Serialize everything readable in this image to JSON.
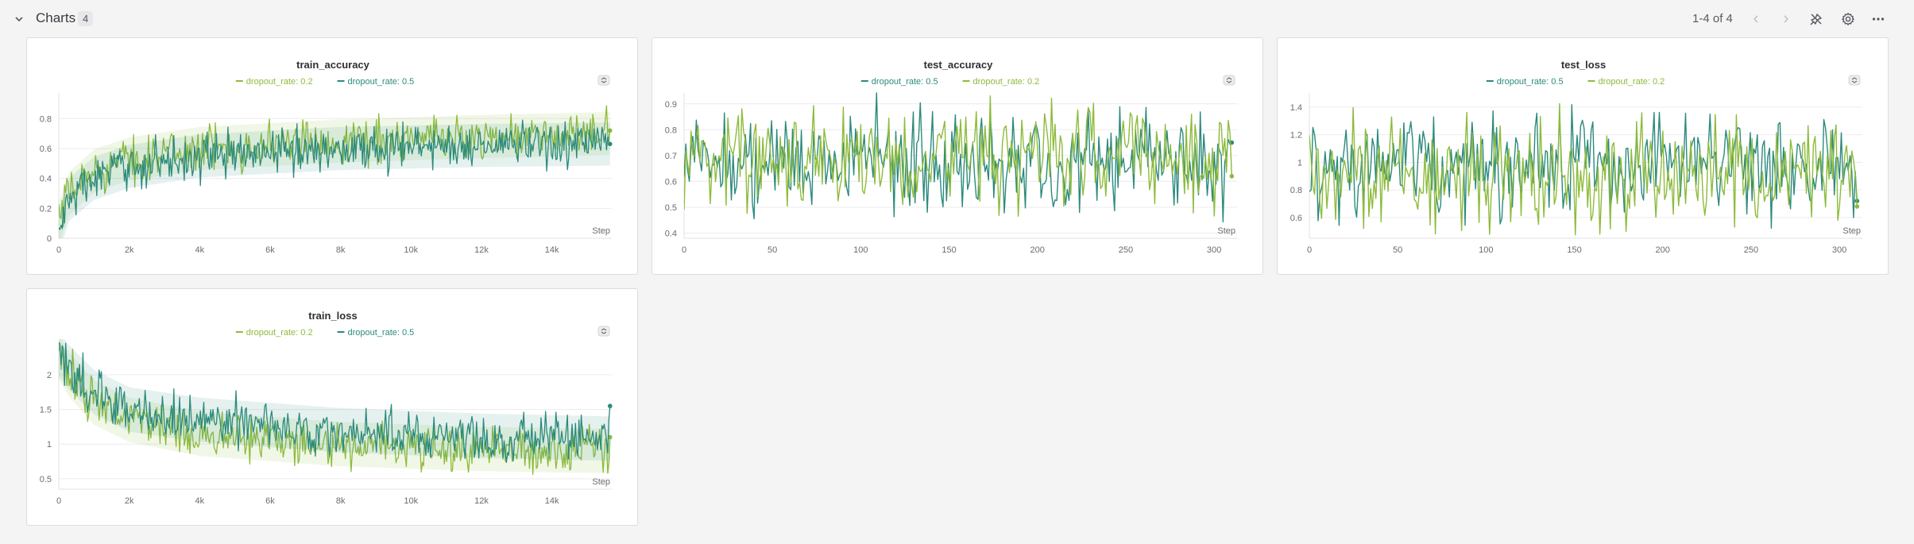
{
  "section": {
    "title": "Charts",
    "count": "4",
    "pager": "1-4 of 4"
  },
  "colors": {
    "dropout_0_2": "#8dbb3c",
    "dropout_0_5": "#2b8a7c",
    "grid": "#ececef",
    "axis_text": "#6b6b72"
  },
  "icons": {
    "collapse": "chevron-down-icon",
    "prev": "chevron-left-icon",
    "next": "chevron-right-icon",
    "pin": "pin-off-icon",
    "settings": "gear-icon",
    "more": "more-horizontal-icon"
  },
  "chart_data": [
    {
      "type": "line",
      "title": "train_accuracy",
      "xlabel": "Step",
      "xlim": [
        0,
        15700
      ],
      "ylim": [
        0,
        0.95
      ],
      "xticks": [
        0,
        2000,
        4000,
        6000,
        8000,
        10000,
        12000,
        14000
      ],
      "xtick_labels": [
        "0",
        "2k",
        "4k",
        "6k",
        "8k",
        "10k",
        "12k",
        "14k"
      ],
      "yticks": [
        0,
        0.2,
        0.4,
        0.6,
        0.8
      ],
      "ytick_labels": [
        "0",
        "0.2",
        "0.4",
        "0.6",
        "0.8"
      ],
      "legend": [
        "dropout_rate: 0.2",
        "dropout_rate: 0.5"
      ],
      "legend_placement": "top-center",
      "grid": true,
      "series": [
        {
          "name": "dropout_rate: 0.2",
          "color": "#8dbb3c",
          "trend": [
            [
              0,
              0.1
            ],
            [
              300,
              0.3
            ],
            [
              1000,
              0.45
            ],
            [
              2000,
              0.53
            ],
            [
              4000,
              0.6
            ],
            [
              8000,
              0.65
            ],
            [
              12000,
              0.68
            ],
            [
              15700,
              0.7
            ]
          ],
          "noise": 0.09,
          "end": 0.72
        },
        {
          "name": "dropout_rate: 0.5",
          "color": "#2b8a7c",
          "trend": [
            [
              0,
              0.05
            ],
            [
              300,
              0.26
            ],
            [
              1000,
              0.4
            ],
            [
              2000,
              0.48
            ],
            [
              4000,
              0.55
            ],
            [
              8000,
              0.6
            ],
            [
              12000,
              0.62
            ],
            [
              15700,
              0.63
            ]
          ],
          "noise": 0.09,
          "end": 0.63
        }
      ]
    },
    {
      "type": "line",
      "title": "test_accuracy",
      "xlabel": "Step",
      "xlim": [
        0,
        313
      ],
      "ylim": [
        0.38,
        0.93
      ],
      "xticks": [
        0,
        50,
        100,
        150,
        200,
        250,
        300
      ],
      "xtick_labels": [
        "0",
        "50",
        "100",
        "150",
        "200",
        "250",
        "300"
      ],
      "yticks": [
        0.4,
        0.5,
        0.6,
        0.7,
        0.8,
        0.9
      ],
      "ytick_labels": [
        "0.4",
        "0.5",
        "0.6",
        "0.7",
        "0.8",
        "0.9"
      ],
      "legend": [
        "dropout_rate: 0.5",
        "dropout_rate: 0.2"
      ],
      "legend_placement": "top-center",
      "grid": true,
      "series": [
        {
          "name": "dropout_rate: 0.5",
          "color": "#2b8a7c",
          "trend": [
            [
              0,
              0.68
            ],
            [
              313,
              0.68
            ]
          ],
          "noise": 0.09,
          "end": 0.75
        },
        {
          "name": "dropout_rate: 0.2",
          "color": "#8dbb3c",
          "trend": [
            [
              0,
              0.7
            ],
            [
              313,
              0.7
            ]
          ],
          "noise": 0.09,
          "end": 0.62
        }
      ]
    },
    {
      "type": "line",
      "title": "test_loss",
      "xlabel": "Step",
      "xlim": [
        0,
        313
      ],
      "ylim": [
        0.45,
        1.48
      ],
      "xticks": [
        0,
        50,
        100,
        150,
        200,
        250,
        300
      ],
      "xtick_labels": [
        "0",
        "50",
        "100",
        "150",
        "200",
        "250",
        "300"
      ],
      "yticks": [
        0.6,
        0.8,
        1,
        1.2,
        1.4
      ],
      "ytick_labels": [
        "0.6",
        "0.8",
        "1",
        "1.2",
        "1.4"
      ],
      "legend": [
        "dropout_rate: 0.5",
        "dropout_rate: 0.2"
      ],
      "legend_placement": "top-center",
      "grid": true,
      "series": [
        {
          "name": "dropout_rate: 0.5",
          "color": "#2b8a7c",
          "trend": [
            [
              0,
              0.98
            ],
            [
              313,
              0.98
            ]
          ],
          "noise": 0.17,
          "end": 0.72
        },
        {
          "name": "dropout_rate: 0.2",
          "color": "#8dbb3c",
          "trend": [
            [
              0,
              0.92
            ],
            [
              313,
              0.92
            ]
          ],
          "noise": 0.17,
          "end": 0.68
        }
      ]
    },
    {
      "type": "line",
      "title": "train_loss",
      "xlabel": "Step",
      "xlim": [
        0,
        15700
      ],
      "ylim": [
        0.35,
        2.4
      ],
      "xticks": [
        0,
        2000,
        4000,
        6000,
        8000,
        10000,
        12000,
        14000
      ],
      "xtick_labels": [
        "0",
        "2k",
        "4k",
        "6k",
        "8k",
        "10k",
        "12k",
        "14k"
      ],
      "yticks": [
        0.5,
        1,
        1.5,
        2
      ],
      "ytick_labels": [
        "0.5",
        "1",
        "1.5",
        "2"
      ],
      "legend": [
        "dropout_rate: 0.2",
        "dropout_rate: 0.5"
      ],
      "legend_placement": "top-center",
      "grid": true,
      "series": [
        {
          "name": "dropout_rate: 0.2",
          "color": "#8dbb3c",
          "trend": [
            [
              0,
              2.25
            ],
            [
              300,
              2.0
            ],
            [
              1000,
              1.6
            ],
            [
              2000,
              1.35
            ],
            [
              4000,
              1.15
            ],
            [
              8000,
              1.0
            ],
            [
              12000,
              0.93
            ],
            [
              15700,
              0.9
            ]
          ],
          "noise": 0.2,
          "end": 1.1
        },
        {
          "name": "dropout_rate: 0.5",
          "color": "#2b8a7c",
          "trend": [
            [
              0,
              2.3
            ],
            [
              300,
              2.1
            ],
            [
              1000,
              1.75
            ],
            [
              2000,
              1.5
            ],
            [
              4000,
              1.35
            ],
            [
              8000,
              1.2
            ],
            [
              12000,
              1.12
            ],
            [
              15700,
              1.08
            ]
          ],
          "noise": 0.2,
          "end": 1.55
        }
      ]
    }
  ]
}
